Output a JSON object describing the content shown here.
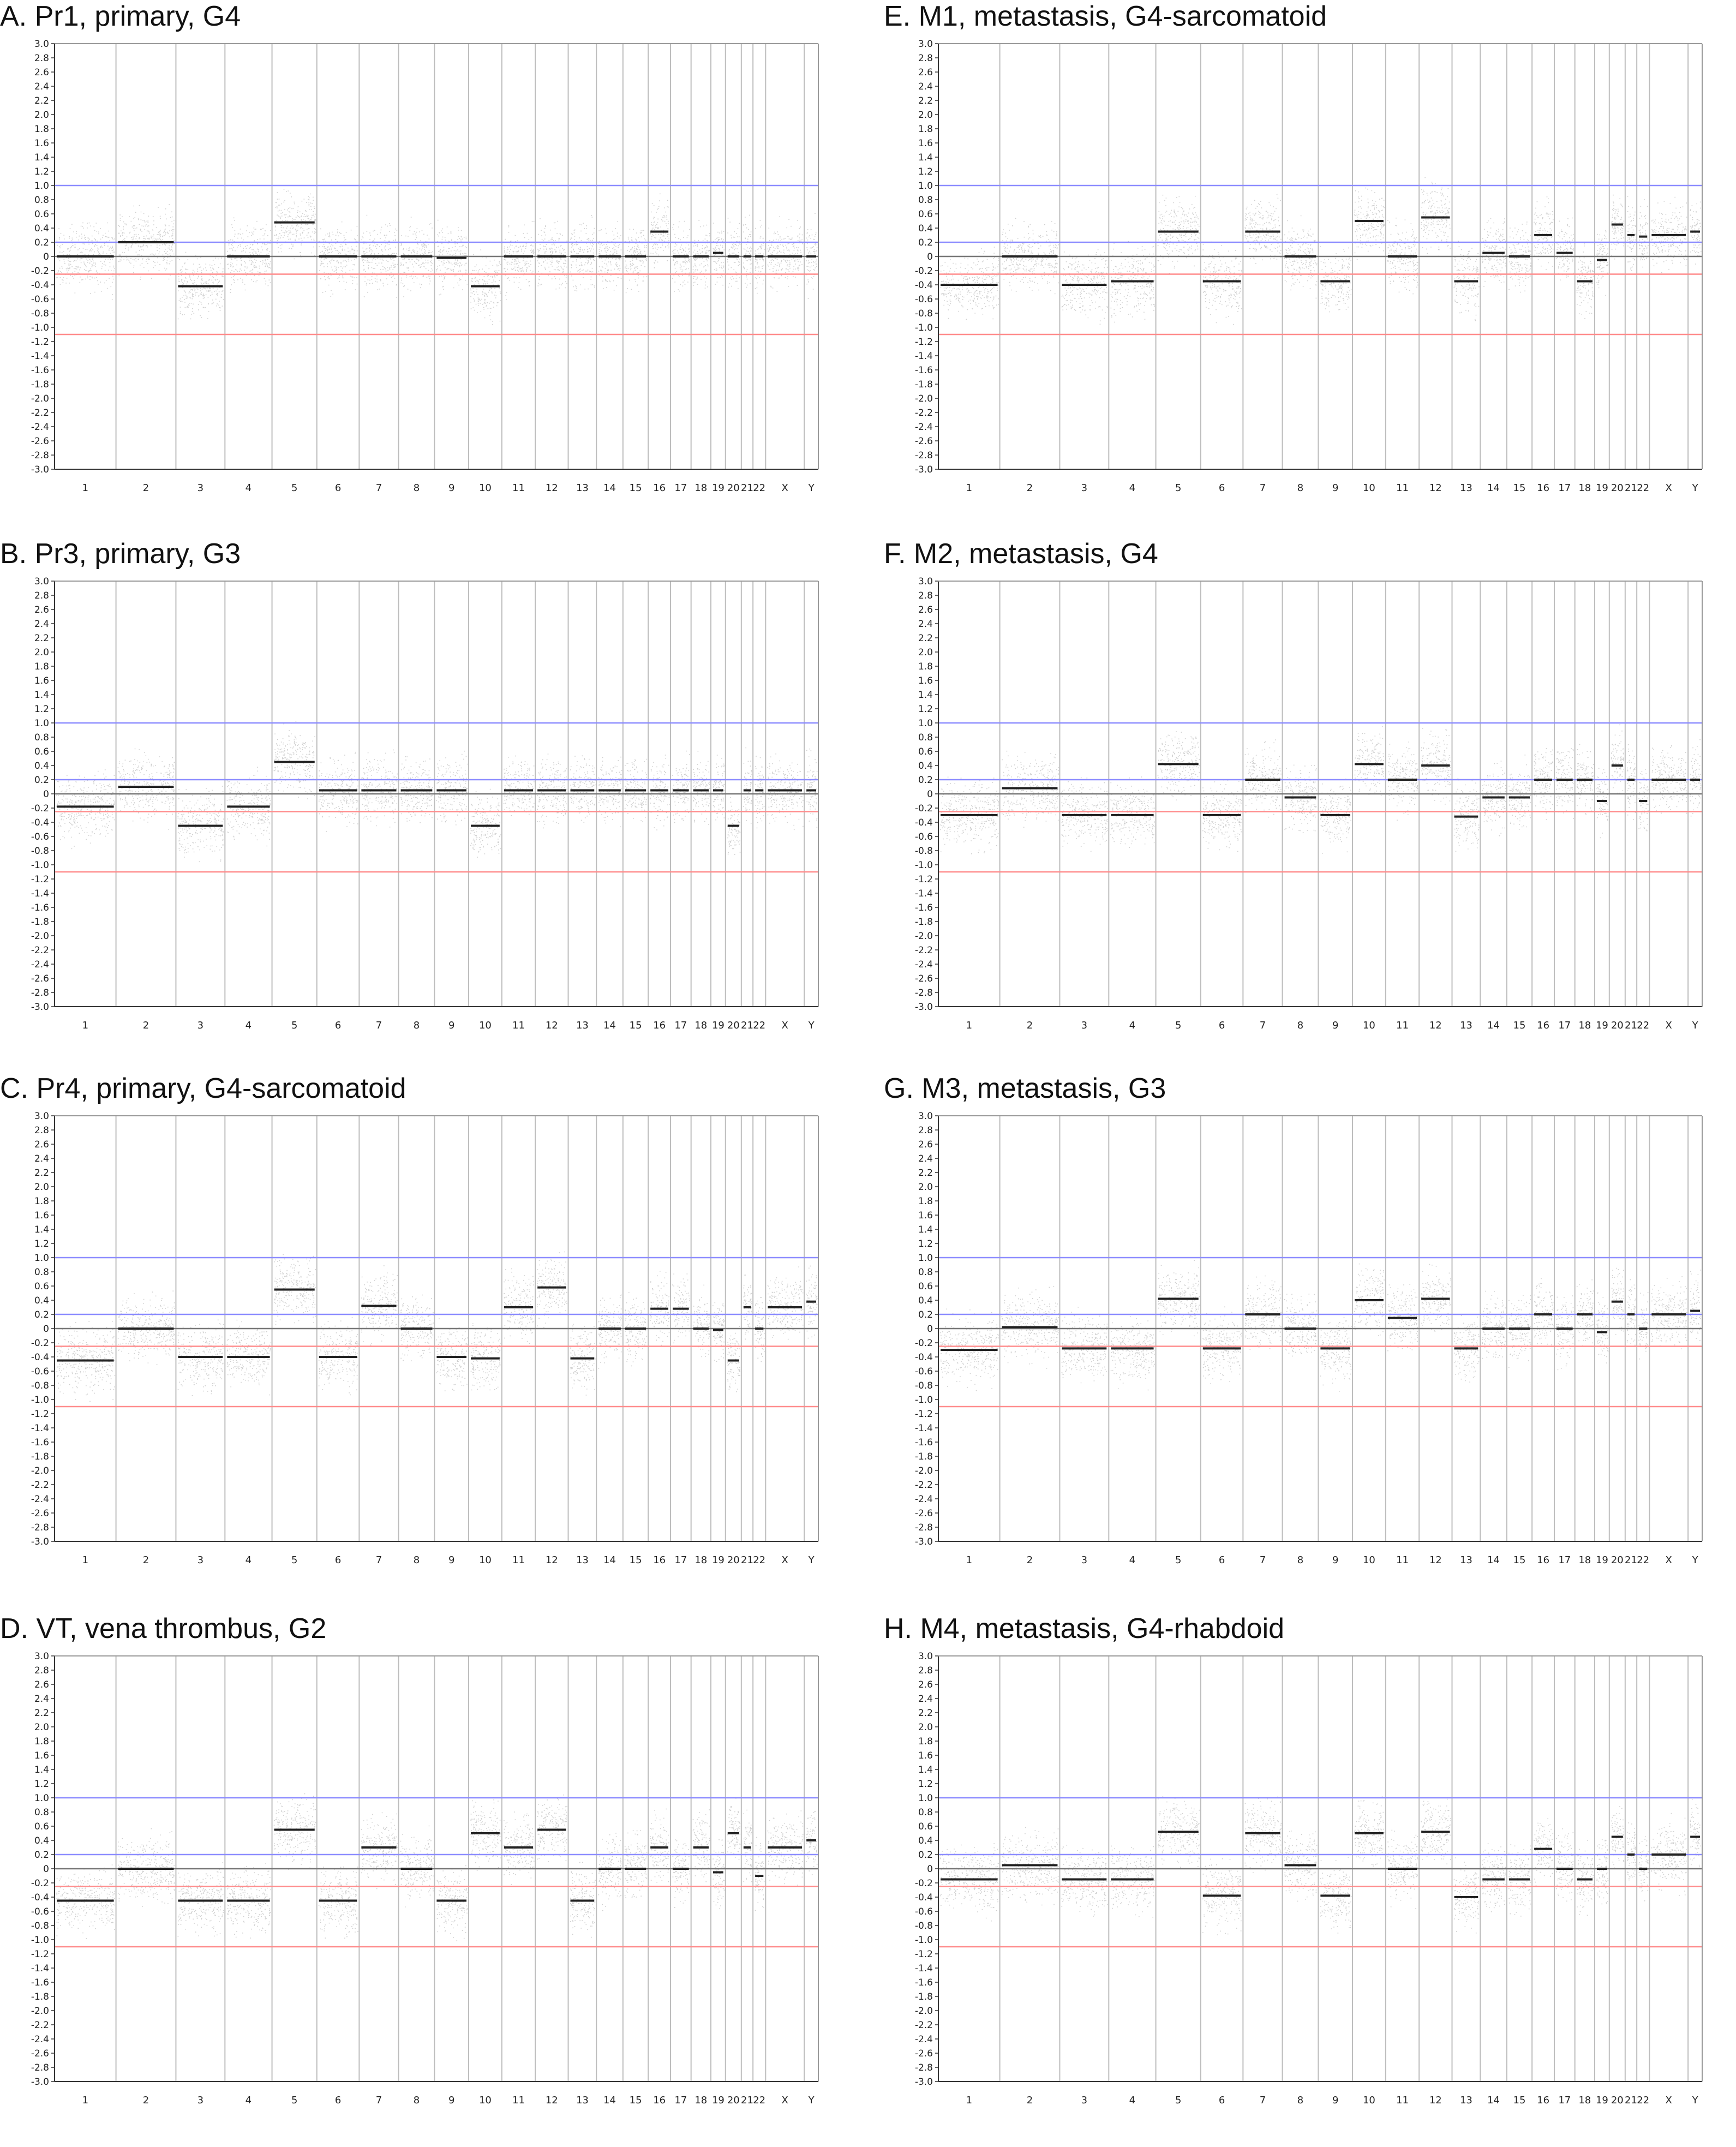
{
  "chart_data": [
    {
      "type": "scatter",
      "title": "A. Pr1, primary, G4",
      "ylim": [
        -3.0,
        3.0
      ],
      "y_ticks": [
        "3.0",
        "2.8",
        "2.6",
        "2.4",
        "2.2",
        "2.0",
        "1.8",
        "1.6",
        "1.4",
        "1.2",
        "1.0",
        "0.8",
        "0.6",
        "0.4",
        "0.2",
        "0",
        "-0.2",
        "-0.4",
        "-0.6",
        "-0.8",
        "-1.0",
        "-1.2",
        "-1.4",
        "-1.6",
        "-1.8",
        "-2.0",
        "-2.2",
        "-2.4",
        "-2.6",
        "-2.8",
        "-3.0"
      ],
      "categories": [
        "1",
        "2",
        "3",
        "4",
        "5",
        "6",
        "7",
        "8",
        "9",
        "10",
        "11",
        "12",
        "13",
        "14",
        "15",
        "16",
        "17",
        "18",
        "19",
        "20",
        "21",
        "22",
        "X",
        "Y"
      ],
      "reference_lines": [
        1.0,
        0.2,
        0,
        -0.25,
        -1.1
      ],
      "segment_values": [
        0.0,
        0.2,
        -0.42,
        0.0,
        0.48,
        0.0,
        0.0,
        0.0,
        -0.02,
        -0.42,
        0.0,
        0.0,
        0.0,
        0.0,
        0.0,
        0.35,
        0.0,
        0.0,
        0.05,
        0.0,
        0.0,
        0.0,
        0.0,
        0.0
      ]
    },
    {
      "type": "scatter",
      "title": "E. M1, metastasis, G4-sarcomatoid",
      "ylim": [
        -3.0,
        3.0
      ],
      "y_ticks": [
        "3.0",
        "2.8",
        "2.6",
        "2.4",
        "2.2",
        "2.0",
        "1.8",
        "1.6",
        "1.4",
        "1.2",
        "1.0",
        "0.8",
        "0.6",
        "0.4",
        "0.2",
        "0",
        "-0.2",
        "-0.4",
        "-0.6",
        "-0.8",
        "-1.0",
        "-1.2",
        "-1.4",
        "-1.6",
        "-1.8",
        "-2.0",
        "-2.2",
        "-2.4",
        "-2.6",
        "-2.8",
        "-3.0"
      ],
      "categories": [
        "1",
        "2",
        "3",
        "4",
        "5",
        "6",
        "7",
        "8",
        "9",
        "10",
        "11",
        "12",
        "13",
        "14",
        "15",
        "16",
        "17",
        "18",
        "19",
        "20",
        "21",
        "22",
        "X",
        "Y"
      ],
      "reference_lines": [
        1.0,
        0.2,
        0,
        -0.25,
        -1.1
      ],
      "segment_values": [
        -0.4,
        0.0,
        -0.4,
        -0.35,
        0.35,
        -0.35,
        0.35,
        0.0,
        -0.35,
        0.5,
        0.0,
        0.55,
        -0.35,
        0.05,
        0.0,
        0.3,
        0.05,
        -0.35,
        -0.05,
        0.45,
        0.3,
        0.28,
        0.3,
        0.35
      ]
    },
    {
      "type": "scatter",
      "title": "B. Pr3, primary, G3",
      "ylim": [
        -3.0,
        3.0
      ],
      "y_ticks": [
        "3.0",
        "2.8",
        "2.6",
        "2.4",
        "2.2",
        "2.0",
        "1.8",
        "1.6",
        "1.4",
        "1.2",
        "1.0",
        "0.8",
        "0.6",
        "0.4",
        "0.2",
        "0",
        "-0.2",
        "-0.4",
        "-0.6",
        "-0.8",
        "-1.0",
        "-1.2",
        "-1.4",
        "-1.6",
        "-1.8",
        "-2.0",
        "-2.2",
        "-2.4",
        "-2.6",
        "-2.8",
        "-3.0"
      ],
      "categories": [
        "1",
        "2",
        "3",
        "4",
        "5",
        "6",
        "7",
        "8",
        "9",
        "10",
        "11",
        "12",
        "13",
        "14",
        "15",
        "16",
        "17",
        "18",
        "19",
        "20",
        "21",
        "22",
        "X",
        "Y"
      ],
      "reference_lines": [
        1.0,
        0.2,
        0,
        -0.25,
        -1.1
      ],
      "segment_values": [
        -0.18,
        0.1,
        -0.45,
        -0.18,
        0.45,
        0.05,
        0.05,
        0.05,
        0.05,
        -0.45,
        0.05,
        0.05,
        0.05,
        0.05,
        0.05,
        0.05,
        0.05,
        0.05,
        0.05,
        -0.45,
        0.05,
        0.05,
        0.05,
        0.05
      ]
    },
    {
      "type": "scatter",
      "title": "F. M2, metastasis, G4",
      "ylim": [
        -3.0,
        3.0
      ],
      "y_ticks": [
        "3.0",
        "2.8",
        "2.6",
        "2.4",
        "2.2",
        "2.0",
        "1.8",
        "1.6",
        "1.4",
        "1.2",
        "1.0",
        "0.8",
        "0.6",
        "0.4",
        "0.2",
        "0",
        "-0.2",
        "-0.4",
        "-0.6",
        "-0.8",
        "-1.0",
        "-1.2",
        "-1.4",
        "-1.6",
        "-1.8",
        "-2.0",
        "-2.2",
        "-2.4",
        "-2.6",
        "-2.8",
        "-3.0"
      ],
      "categories": [
        "1",
        "2",
        "3",
        "4",
        "5",
        "6",
        "7",
        "8",
        "9",
        "10",
        "11",
        "12",
        "13",
        "14",
        "15",
        "16",
        "17",
        "18",
        "19",
        "20",
        "21",
        "22",
        "X",
        "Y"
      ],
      "reference_lines": [
        1.0,
        0.2,
        0,
        -0.25,
        -1.1
      ],
      "segment_values": [
        -0.3,
        0.08,
        -0.3,
        -0.3,
        0.42,
        -0.3,
        0.2,
        -0.05,
        -0.3,
        0.42,
        0.2,
        0.4,
        -0.32,
        -0.05,
        -0.05,
        0.2,
        0.2,
        0.2,
        -0.1,
        0.4,
        0.2,
        -0.1,
        0.2,
        0.2
      ]
    },
    {
      "type": "scatter",
      "title": "C. Pr4, primary, G4-sarcomatoid",
      "ylim": [
        -3.0,
        3.0
      ],
      "y_ticks": [
        "3.0",
        "2.8",
        "2.6",
        "2.4",
        "2.2",
        "2.0",
        "1.8",
        "1.6",
        "1.4",
        "1.2",
        "1.0",
        "0.8",
        "0.6",
        "0.4",
        "0.2",
        "0",
        "-0.2",
        "-0.4",
        "-0.6",
        "-0.8",
        "-1.0",
        "-1.2",
        "-1.4",
        "-1.6",
        "-1.8",
        "-2.0",
        "-2.2",
        "-2.4",
        "-2.6",
        "-2.8",
        "-3.0"
      ],
      "categories": [
        "1",
        "2",
        "3",
        "4",
        "5",
        "6",
        "7",
        "8",
        "9",
        "10",
        "11",
        "12",
        "13",
        "14",
        "15",
        "16",
        "17",
        "18",
        "19",
        "20",
        "21",
        "22",
        "X",
        "Y"
      ],
      "reference_lines": [
        1.0,
        0.2,
        0,
        -0.25,
        -1.1
      ],
      "segment_values": [
        -0.45,
        0.0,
        -0.4,
        -0.4,
        0.55,
        -0.4,
        0.32,
        0.0,
        -0.4,
        -0.42,
        0.3,
        0.58,
        -0.42,
        0.0,
        0.0,
        0.28,
        0.28,
        0.0,
        -0.02,
        -0.45,
        0.3,
        0.0,
        0.3,
        0.38
      ]
    },
    {
      "type": "scatter",
      "title": "G. M3, metastasis, G3",
      "ylim": [
        -3.0,
        3.0
      ],
      "y_ticks": [
        "3.0",
        "2.8",
        "2.6",
        "2.4",
        "2.2",
        "2.0",
        "1.8",
        "1.6",
        "1.4",
        "1.2",
        "1.0",
        "0.8",
        "0.6",
        "0.4",
        "0.2",
        "0",
        "-0.2",
        "-0.4",
        "-0.6",
        "-0.8",
        "-1.0",
        "-1.2",
        "-1.4",
        "-1.6",
        "-1.8",
        "-2.0",
        "-2.2",
        "-2.4",
        "-2.6",
        "-2.8",
        "-3.0"
      ],
      "categories": [
        "1",
        "2",
        "3",
        "4",
        "5",
        "6",
        "7",
        "8",
        "9",
        "10",
        "11",
        "12",
        "13",
        "14",
        "15",
        "16",
        "17",
        "18",
        "19",
        "20",
        "21",
        "22",
        "X",
        "Y"
      ],
      "reference_lines": [
        1.0,
        0.2,
        0,
        -0.25,
        -1.1
      ],
      "segment_values": [
        -0.3,
        0.02,
        -0.28,
        -0.28,
        0.42,
        -0.28,
        0.2,
        0.0,
        -0.28,
        0.4,
        0.15,
        0.42,
        -0.28,
        0.0,
        0.0,
        0.2,
        0.0,
        0.2,
        -0.05,
        0.38,
        0.2,
        0.0,
        0.2,
        0.25
      ]
    },
    {
      "type": "scatter",
      "title": "D. VT, vena thrombus, G2",
      "ylim": [
        -3.0,
        3.0
      ],
      "y_ticks": [
        "3.0",
        "2.8",
        "2.6",
        "2.4",
        "2.2",
        "2.0",
        "1.8",
        "1.6",
        "1.4",
        "1.2",
        "1.0",
        "0.8",
        "0.6",
        "0.4",
        "0.2",
        "0",
        "-0.2",
        "-0.4",
        "-0.6",
        "-0.8",
        "-1.0",
        "-1.2",
        "-1.4",
        "-1.6",
        "-1.8",
        "-2.0",
        "-2.2",
        "-2.4",
        "-2.6",
        "-2.8",
        "-3.0"
      ],
      "categories": [
        "1",
        "2",
        "3",
        "4",
        "5",
        "6",
        "7",
        "8",
        "9",
        "10",
        "11",
        "12",
        "13",
        "14",
        "15",
        "16",
        "17",
        "18",
        "19",
        "20",
        "21",
        "22",
        "X",
        "Y"
      ],
      "reference_lines": [
        1.0,
        0.2,
        0,
        -0.25,
        -1.1
      ],
      "segment_values": [
        -0.45,
        0.0,
        -0.45,
        -0.45,
        0.55,
        -0.45,
        0.3,
        0.0,
        -0.45,
        0.5,
        0.3,
        0.55,
        -0.45,
        0.0,
        0.0,
        0.3,
        0.0,
        0.3,
        -0.05,
        0.5,
        0.3,
        -0.1,
        0.3,
        0.4
      ]
    },
    {
      "type": "scatter",
      "title": "H. M4, metastasis, G4-rhabdoid",
      "ylim": [
        -3.0,
        3.0
      ],
      "y_ticks": [
        "3.0",
        "2.8",
        "2.6",
        "2.4",
        "2.2",
        "2.0",
        "1.8",
        "1.6",
        "1.4",
        "1.2",
        "1.0",
        "0.8",
        "0.6",
        "0.4",
        "0.2",
        "0",
        "-0.2",
        "-0.4",
        "-0.6",
        "-0.8",
        "-1.0",
        "-1.2",
        "-1.4",
        "-1.6",
        "-1.8",
        "-2.0",
        "-2.2",
        "-2.4",
        "-2.6",
        "-2.8",
        "-3.0"
      ],
      "categories": [
        "1",
        "2",
        "3",
        "4",
        "5",
        "6",
        "7",
        "8",
        "9",
        "10",
        "11",
        "12",
        "13",
        "14",
        "15",
        "16",
        "17",
        "18",
        "19",
        "20",
        "21",
        "22",
        "X",
        "Y"
      ],
      "reference_lines": [
        1.0,
        0.2,
        0,
        -0.25,
        -1.1
      ],
      "segment_values": [
        -0.15,
        0.05,
        -0.15,
        -0.15,
        0.52,
        -0.38,
        0.5,
        0.05,
        -0.38,
        0.5,
        0.0,
        0.52,
        -0.4,
        -0.15,
        -0.15,
        0.28,
        0.0,
        -0.15,
        0.0,
        0.45,
        0.2,
        0.0,
        0.2,
        0.45
      ]
    }
  ],
  "colors": {
    "gain_line": "#8c8cff",
    "loss_line": "#ff8c8c",
    "zero_line": "#777777",
    "separator": "#bdbdbd",
    "axis": "#333333",
    "probe_cloud": "#cfcfcf",
    "segment": "#222222"
  }
}
